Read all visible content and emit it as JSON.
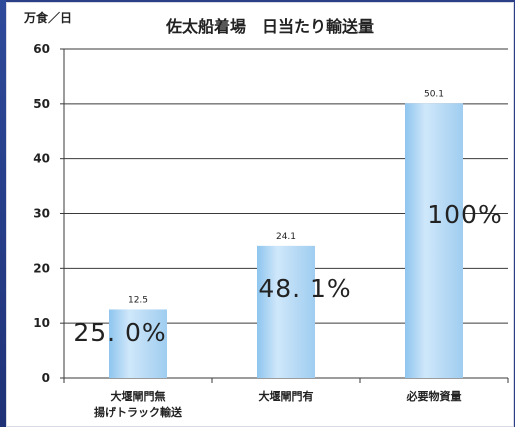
{
  "chart_data": {
    "type": "bar",
    "title": "佐太船着場　日当たり輸送量",
    "ylabel": "万食／日",
    "ylim": [
      0,
      60
    ],
    "yticks": [
      0,
      10,
      20,
      30,
      40,
      50,
      60
    ],
    "grid": true,
    "categories": [
      [
        "大堰閘門無",
        "揚げトラック輸送"
      ],
      [
        "大堰閘門有"
      ],
      [
        "必要物資量"
      ]
    ],
    "values": [
      12.5,
      24.1,
      50.1
    ],
    "value_labels": [
      "12.5",
      "24.1",
      "50.1"
    ],
    "percent_labels": [
      "25. 0%",
      "48. 1%",
      "100%"
    ],
    "bar_color": "#a9d3f2"
  }
}
